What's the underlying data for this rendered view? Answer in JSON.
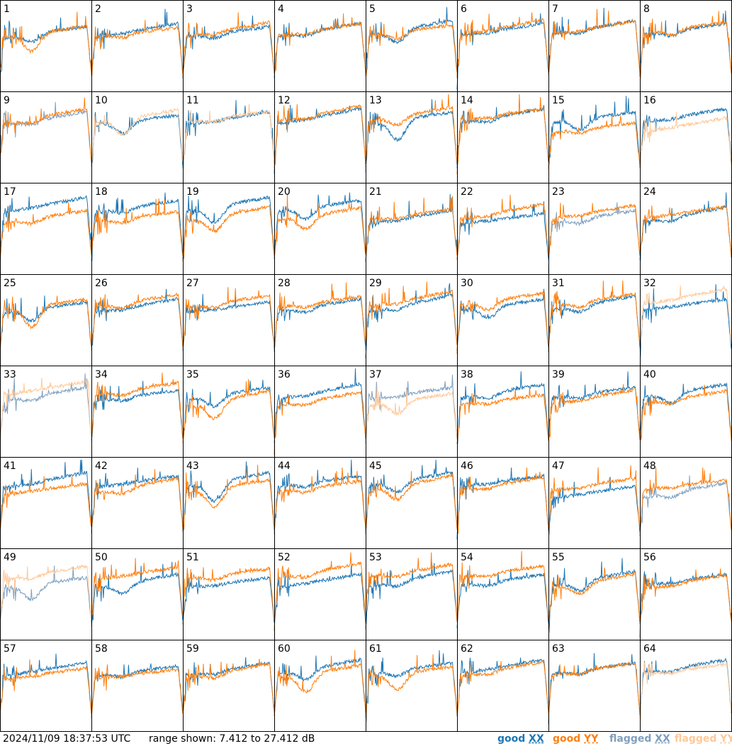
{
  "footer": {
    "timestamp": "2024/11/09 18:37:53 UTC",
    "range_text": "range shown: 7.412 to 27.412 dB",
    "legend": [
      {
        "label": "good ",
        "pol": "XX",
        "color": "#1f77b4"
      },
      {
        "label": "good ",
        "pol": "YY",
        "color": "#ff7f0e"
      },
      {
        "label": "flagged ",
        "pol": "XX",
        "color": "#7f9fbf"
      },
      {
        "label": "flagged ",
        "pol": "YY",
        "color": "#ffc899"
      }
    ]
  },
  "colors": {
    "good_xx": "#1f77b4",
    "good_yy": "#ff7f0e",
    "flagged_xx": "#7f9fbf",
    "flagged_yy": "#ffc899",
    "frame": "#000000"
  },
  "chart_data": {
    "type": "line",
    "layout": "small-multiples",
    "grid": false,
    "ylim": [
      7.412,
      27.412
    ],
    "units": "dB",
    "panels": [
      {
        "id": 1,
        "xx": "good",
        "yy": "good"
      },
      {
        "id": 2,
        "xx": "good",
        "yy": "good"
      },
      {
        "id": 3,
        "xx": "good",
        "yy": "good"
      },
      {
        "id": 4,
        "xx": "good",
        "yy": "good"
      },
      {
        "id": 5,
        "xx": "good",
        "yy": "good"
      },
      {
        "id": 6,
        "xx": "good",
        "yy": "good"
      },
      {
        "id": 7,
        "xx": "good",
        "yy": "good"
      },
      {
        "id": 8,
        "xx": "good",
        "yy": "good"
      },
      {
        "id": 9,
        "xx": "flagged",
        "yy": "good"
      },
      {
        "id": 10,
        "xx": "good",
        "yy": "flagged"
      },
      {
        "id": 11,
        "xx": "good",
        "yy": "flagged"
      },
      {
        "id": 12,
        "xx": "good",
        "yy": "good"
      },
      {
        "id": 13,
        "xx": "good",
        "yy": "good"
      },
      {
        "id": 14,
        "xx": "good",
        "yy": "good"
      },
      {
        "id": 15,
        "xx": "good",
        "yy": "good"
      },
      {
        "id": 16,
        "xx": "good",
        "yy": "flagged"
      },
      {
        "id": 17,
        "xx": "good",
        "yy": "good"
      },
      {
        "id": 18,
        "xx": "good",
        "yy": "good"
      },
      {
        "id": 19,
        "xx": "good",
        "yy": "good"
      },
      {
        "id": 20,
        "xx": "good",
        "yy": "good"
      },
      {
        "id": 21,
        "xx": "good",
        "yy": "good"
      },
      {
        "id": 22,
        "xx": "good",
        "yy": "good"
      },
      {
        "id": 23,
        "xx": "flagged",
        "yy": "good"
      },
      {
        "id": 24,
        "xx": "good",
        "yy": "good"
      },
      {
        "id": 25,
        "xx": "good",
        "yy": "good"
      },
      {
        "id": 26,
        "xx": "good",
        "yy": "good"
      },
      {
        "id": 27,
        "xx": "good",
        "yy": "good"
      },
      {
        "id": 28,
        "xx": "good",
        "yy": "good"
      },
      {
        "id": 29,
        "xx": "good",
        "yy": "good"
      },
      {
        "id": 30,
        "xx": "good",
        "yy": "good"
      },
      {
        "id": 31,
        "xx": "good",
        "yy": "good"
      },
      {
        "id": 32,
        "xx": "good",
        "yy": "flagged"
      },
      {
        "id": 33,
        "xx": "flagged",
        "yy": "flagged"
      },
      {
        "id": 34,
        "xx": "good",
        "yy": "good"
      },
      {
        "id": 35,
        "xx": "good",
        "yy": "good"
      },
      {
        "id": 36,
        "xx": "good",
        "yy": "good"
      },
      {
        "id": 37,
        "xx": "flagged",
        "yy": "flagged"
      },
      {
        "id": 38,
        "xx": "good",
        "yy": "good"
      },
      {
        "id": 39,
        "xx": "good",
        "yy": "good"
      },
      {
        "id": 40,
        "xx": "good",
        "yy": "good"
      },
      {
        "id": 41,
        "xx": "good",
        "yy": "good"
      },
      {
        "id": 42,
        "xx": "good",
        "yy": "good"
      },
      {
        "id": 43,
        "xx": "good",
        "yy": "good"
      },
      {
        "id": 44,
        "xx": "good",
        "yy": "good"
      },
      {
        "id": 45,
        "xx": "good",
        "yy": "good"
      },
      {
        "id": 46,
        "xx": "good",
        "yy": "good"
      },
      {
        "id": 47,
        "xx": "good",
        "yy": "good"
      },
      {
        "id": 48,
        "xx": "flagged",
        "yy": "good"
      },
      {
        "id": 49,
        "xx": "flagged",
        "yy": "flagged"
      },
      {
        "id": 50,
        "xx": "good",
        "yy": "good"
      },
      {
        "id": 51,
        "xx": "good",
        "yy": "good"
      },
      {
        "id": 52,
        "xx": "good",
        "yy": "good"
      },
      {
        "id": 53,
        "xx": "good",
        "yy": "good"
      },
      {
        "id": 54,
        "xx": "good",
        "yy": "good"
      },
      {
        "id": 55,
        "xx": "good",
        "yy": "good"
      },
      {
        "id": 56,
        "xx": "good",
        "yy": "good"
      },
      {
        "id": 57,
        "xx": "good",
        "yy": "good"
      },
      {
        "id": 58,
        "xx": "good",
        "yy": "good"
      },
      {
        "id": 59,
        "xx": "good",
        "yy": "good"
      },
      {
        "id": 60,
        "xx": "good",
        "yy": "good"
      },
      {
        "id": 61,
        "xx": "good",
        "yy": "good"
      },
      {
        "id": 62,
        "xx": "good",
        "yy": "good"
      },
      {
        "id": 63,
        "xx": "good",
        "yy": "good"
      },
      {
        "id": 64,
        "xx": "good",
        "yy": "flagged"
      }
    ]
  }
}
